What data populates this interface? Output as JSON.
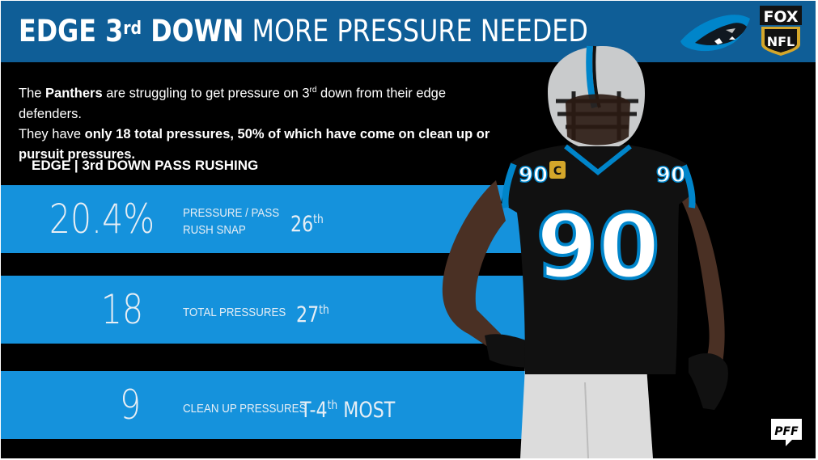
{
  "header": {
    "title_bold": "EDGE 3",
    "title_sup": "rd",
    "title_bold2": " DOWN",
    "title_light": "MORE PRESSURE NEEDED",
    "team_logo_icon": "panther-head-icon",
    "network_logo": "FOX NFL"
  },
  "intro": {
    "t1": "The ",
    "t2": "Panthers",
    "t3": " are struggling to get pressure on 3",
    "t4": "rd",
    "t5": " down from their edge defenders.",
    "t6": "They have ",
    "t7": "only 18 total pressures, 50% of which have come on clean up or pursuit pressures.",
    "t8": ""
  },
  "section_title": "EDGE | 3rd DOWN PASS RUSHING",
  "stats": [
    {
      "value": "20.4%",
      "label_line1": "PRESSURE / PASS",
      "label_line2": "RUSH SNAP",
      "rank": "26",
      "rank_sup": "th",
      "rank_suffix": ""
    },
    {
      "value": "18",
      "label_line1": "TOTAL PRESSURES",
      "label_line2": "",
      "rank": "27",
      "rank_sup": "th",
      "rank_suffix": ""
    },
    {
      "value": "9",
      "label_line1": "CLEAN UP PRESSURES",
      "label_line2": "",
      "rank": "T-4",
      "rank_sup": "th",
      "rank_suffix": " MOST"
    }
  ],
  "player": {
    "jersey_number": "90",
    "captain_patch": "C"
  },
  "watermark": "PFF",
  "colors": {
    "header_blue": "#0f5e97",
    "band_blue": "#1592dc",
    "background": "#000000",
    "panthers_blue": "#0085ca"
  }
}
